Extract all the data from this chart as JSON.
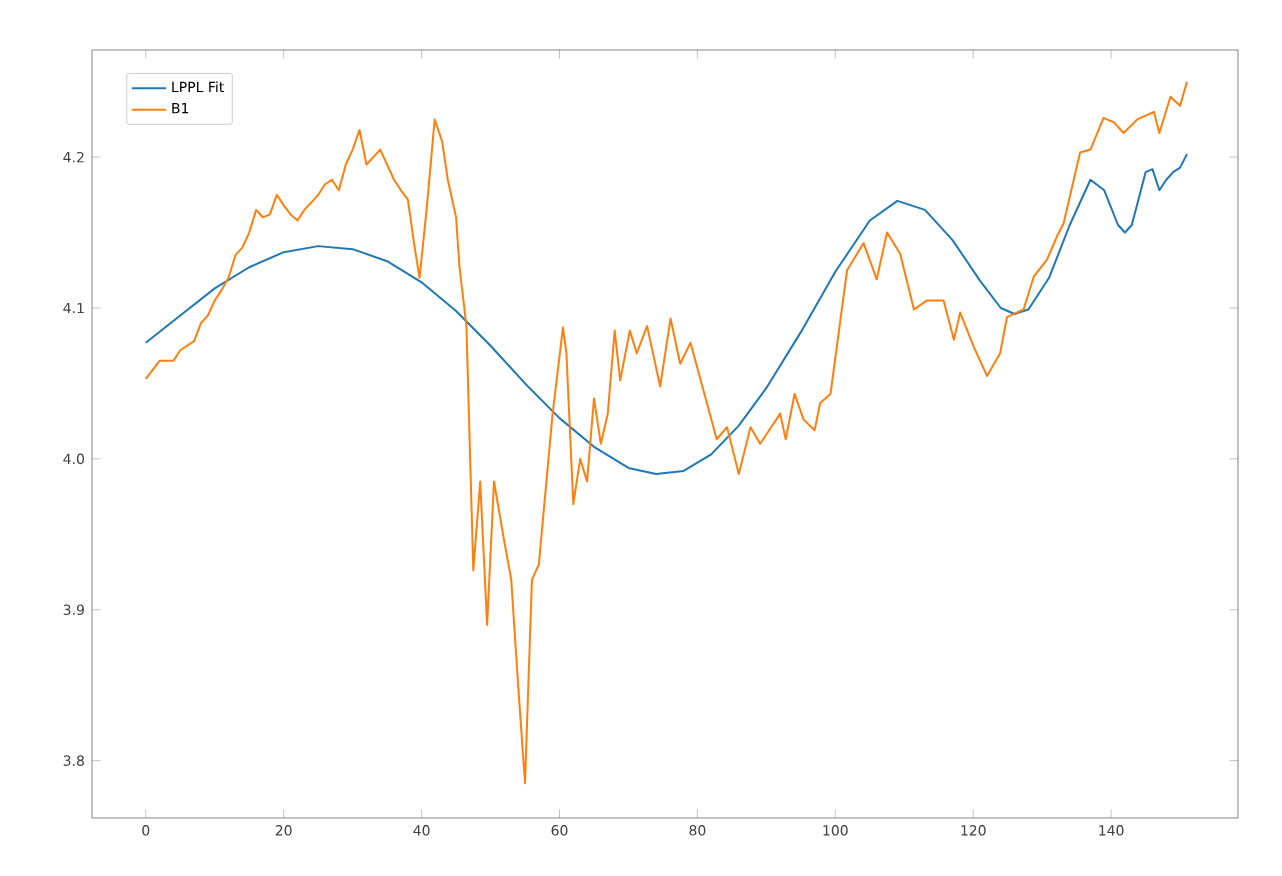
{
  "chart_data": {
    "type": "line",
    "xlim": [
      -7.8,
      158.4
    ],
    "ylim": [
      3.762,
      4.271
    ],
    "xticks": [
      0,
      20,
      40,
      60,
      80,
      100,
      120,
      140
    ],
    "yticks": [
      3.8,
      3.9,
      {
        "value": 4.0,
        "label": "4.0"
      },
      4.1,
      4.2
    ],
    "grid": false,
    "legend": "top left",
    "marker": "none",
    "line_style": "solid",
    "series": [
      {
        "name": "LPPL Fit",
        "color": "#1f77b4",
        "x": [
          0,
          5,
          10,
          15,
          20,
          25,
          30,
          35,
          40,
          45,
          50,
          55,
          60,
          65,
          70,
          74,
          78,
          82,
          86,
          90,
          95,
          100,
          105,
          109,
          113,
          117,
          121,
          124,
          126,
          128,
          131,
          134,
          137,
          139,
          141,
          142,
          143,
          145,
          146,
          147,
          148,
          149,
          150,
          151
        ],
        "values": [
          4.077,
          4.095,
          4.113,
          4.127,
          4.137,
          4.141,
          4.139,
          4.131,
          4.117,
          4.098,
          4.075,
          4.05,
          4.027,
          4.008,
          3.994,
          3.99,
          3.992,
          4.003,
          4.022,
          4.047,
          4.084,
          4.124,
          4.158,
          4.171,
          4.165,
          4.145,
          4.118,
          4.1,
          4.096,
          4.099,
          4.12,
          4.155,
          4.185,
          4.178,
          4.155,
          4.15,
          4.155,
          4.19,
          4.192,
          4.178,
          4.185,
          4.19,
          4.193,
          4.202
        ]
      },
      {
        "name": "B1",
        "color": "#ff7f0e",
        "x": [
          0,
          2,
          4,
          5,
          7,
          8,
          9,
          10,
          11,
          12,
          13,
          14,
          15,
          16,
          17,
          18,
          19,
          20,
          21,
          22,
          23,
          24,
          25,
          26,
          27,
          28,
          29,
          30,
          31,
          32,
          33,
          34,
          35,
          36,
          37,
          38,
          39,
          39.7,
          40.7,
          41.9,
          43,
          43.8,
          45,
          45.5,
          46.5,
          47.5,
          48.5,
          49.5,
          50.5,
          52,
          53,
          54,
          55,
          56,
          57,
          58,
          59,
          60.5,
          61,
          62,
          63,
          64,
          65,
          66,
          67,
          68,
          68.8,
          70.2,
          71.2,
          72.7,
          74.6,
          76.1,
          77.5,
          79,
          82.8,
          84.3,
          86,
          87.7,
          89.1,
          92,
          92.8,
          94.1,
          95.4,
          97,
          97.8,
          99.3,
          101.7,
          104.1,
          106,
          107.5,
          109.4,
          111.4,
          113.3,
          115.7,
          117.2,
          118.1,
          120.1,
          122,
          123.9,
          124.9,
          127.3,
          128.8,
          130.7,
          132.1,
          133.1,
          135.5,
          137,
          138.9,
          140.4,
          141.8,
          143.8,
          146.2,
          147,
          148.6,
          150,
          151
        ],
        "values": [
          4.053,
          4.065,
          4.065,
          4.072,
          4.078,
          4.09,
          4.095,
          4.105,
          4.112,
          4.12,
          4.135,
          4.14,
          4.15,
          4.165,
          4.16,
          4.162,
          4.175,
          4.168,
          4.162,
          4.158,
          4.165,
          4.17,
          4.175,
          4.182,
          4.185,
          4.178,
          4.195,
          4.205,
          4.218,
          4.195,
          4.2,
          4.205,
          4.195,
          4.185,
          4.178,
          4.172,
          4.14,
          4.12,
          4.164,
          4.225,
          4.21,
          4.185,
          4.16,
          4.127,
          4.088,
          3.926,
          3.985,
          3.89,
          3.985,
          3.945,
          3.92,
          3.85,
          3.785,
          3.92,
          3.93,
          3.98,
          4.03,
          4.087,
          4.07,
          3.97,
          4.0,
          3.985,
          4.04,
          4.01,
          4.03,
          4.085,
          4.052,
          4.085,
          4.07,
          4.088,
          4.048,
          4.093,
          4.063,
          4.077,
          4.013,
          4.021,
          3.99,
          4.021,
          4.01,
          4.03,
          4.013,
          4.043,
          4.026,
          4.019,
          4.037,
          4.043,
          4.125,
          4.143,
          4.119,
          4.15,
          4.136,
          4.099,
          4.105,
          4.105,
          4.079,
          4.097,
          4.074,
          4.055,
          4.07,
          4.094,
          4.099,
          4.121,
          4.132,
          4.147,
          4.156,
          4.203,
          4.205,
          4.226,
          4.223,
          4.216,
          4.225,
          4.23,
          4.216,
          4.24,
          4.234,
          4.25
        ]
      }
    ]
  }
}
